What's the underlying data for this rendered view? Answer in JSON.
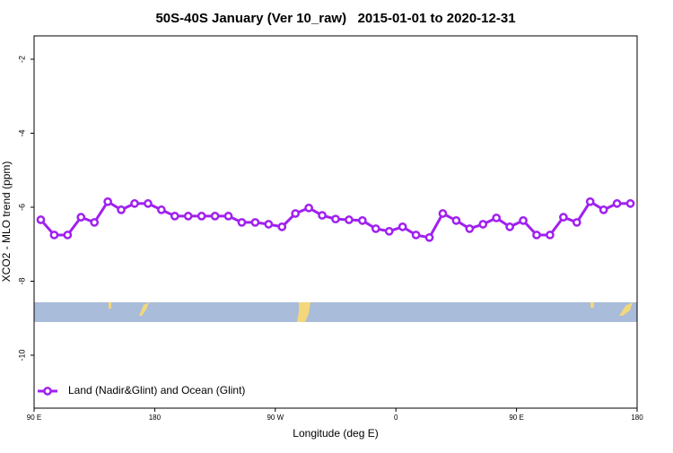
{
  "chart_data": {
    "type": "line",
    "title": "50S-40S January (Ver 10_raw)   2015-01-01 to 2020-12-31",
    "x_label": "Longitude (deg E)",
    "y_label": "XCO2 - MLO trend (ppm)",
    "x": [
      95,
      105,
      115,
      125,
      135,
      145,
      155,
      165,
      175,
      185,
      195,
      205,
      215,
      225,
      235,
      245,
      255,
      265,
      275,
      285,
      295,
      305,
      315,
      325,
      335,
      345,
      355,
      365,
      375,
      385,
      395,
      405,
      415,
      425,
      435,
      445,
      455,
      465,
      475,
      485,
      495,
      505,
      515,
      525,
      535
    ],
    "series": [
      {
        "name": "Land (Nadir&Glint) and Ocean (Glint)",
        "color": "#a020f0",
        "values": [
          -6.34,
          -6.75,
          -6.75,
          -6.27,
          -6.41,
          -5.85,
          -6.07,
          -5.9,
          -5.9,
          -6.07,
          -6.24,
          -6.24,
          -6.24,
          -6.24,
          -6.24,
          -6.41,
          -6.41,
          -6.46,
          -6.53,
          -6.17,
          -6.02,
          -6.22,
          -6.32,
          -6.34,
          -6.36,
          -6.58,
          -6.65,
          -6.53,
          -6.75,
          -6.82,
          -6.17,
          -6.36,
          -6.58,
          -6.46,
          -6.29,
          -6.53,
          -6.36,
          -6.75,
          -6.75,
          -6.27,
          -6.41,
          -5.85,
          -6.07,
          -5.9,
          -5.9
        ]
      }
    ],
    "xlim": [
      90,
      540
    ],
    "xticks": [
      {
        "value": 90,
        "label": "90 E"
      },
      {
        "value": 180,
        "label": "180"
      },
      {
        "value": 270,
        "label": "90 W"
      },
      {
        "value": 360,
        "label": "0"
      },
      {
        "value": 450,
        "label": "90 E"
      },
      {
        "value": 540,
        "label": "180"
      }
    ],
    "ylim": [
      -11.43,
      -1.37
    ],
    "yticks": [
      -2,
      -4,
      -6,
      -8,
      -10
    ],
    "legend": "bottom-left"
  }
}
